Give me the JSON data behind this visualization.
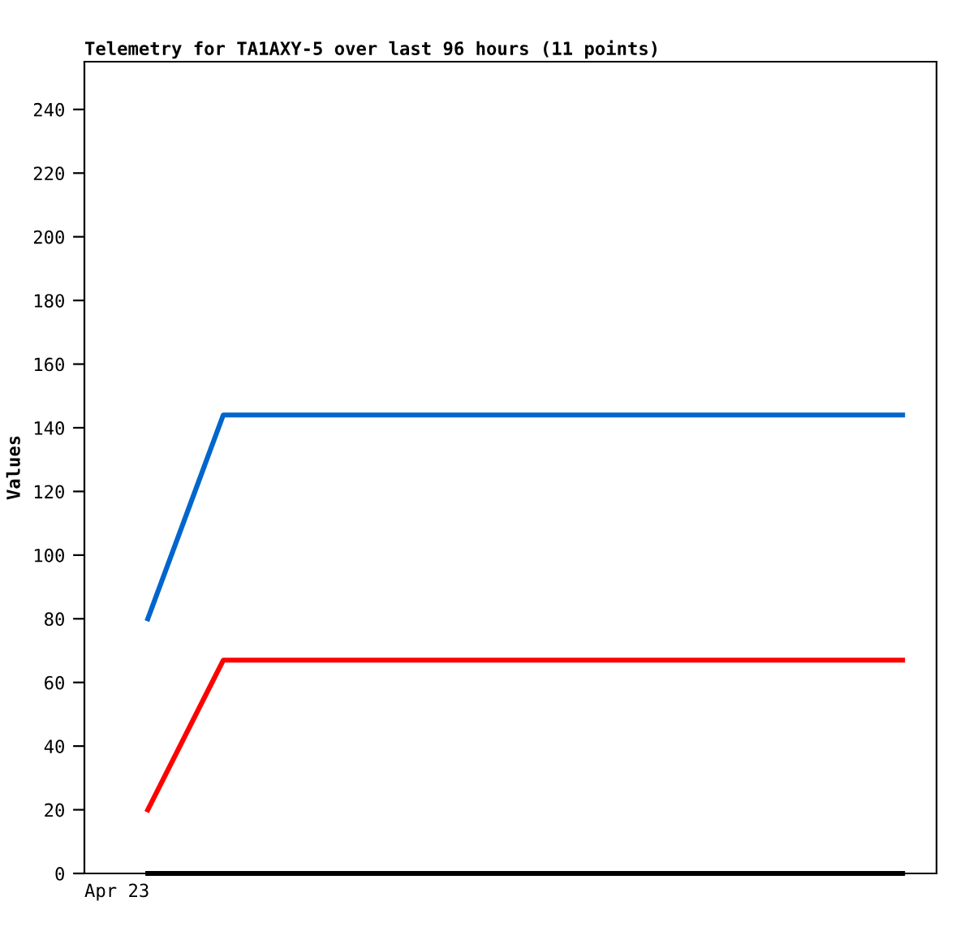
{
  "chart_data": {
    "type": "line",
    "title": "Telemetry for TA1AXY-5 over last 96 hours (11 points)",
    "ylabel": "Values",
    "annotations": [
      "Apr 23"
    ],
    "categories": [
      null,
      null,
      null,
      null,
      null,
      null,
      null,
      null,
      null,
      null,
      null
    ],
    "ylim": [
      0,
      255
    ],
    "yticks": [
      0,
      20,
      40,
      60,
      80,
      100,
      120,
      140,
      160,
      180,
      200,
      220,
      240
    ],
    "series": [
      {
        "color": "#0066cc",
        "values": [
          80,
          144,
          144,
          144,
          144,
          144,
          144,
          144,
          144,
          144,
          144
        ]
      },
      {
        "color": "#ff0000",
        "values": [
          20,
          67,
          67,
          67,
          67,
          67,
          67,
          67,
          67,
          67,
          67
        ]
      },
      {
        "color": "#000000",
        "values": [
          0,
          0,
          0,
          0,
          0,
          0,
          0,
          0,
          0,
          0,
          0
        ]
      }
    ],
    "grid": false,
    "marker": "none",
    "line_style": "solid"
  }
}
